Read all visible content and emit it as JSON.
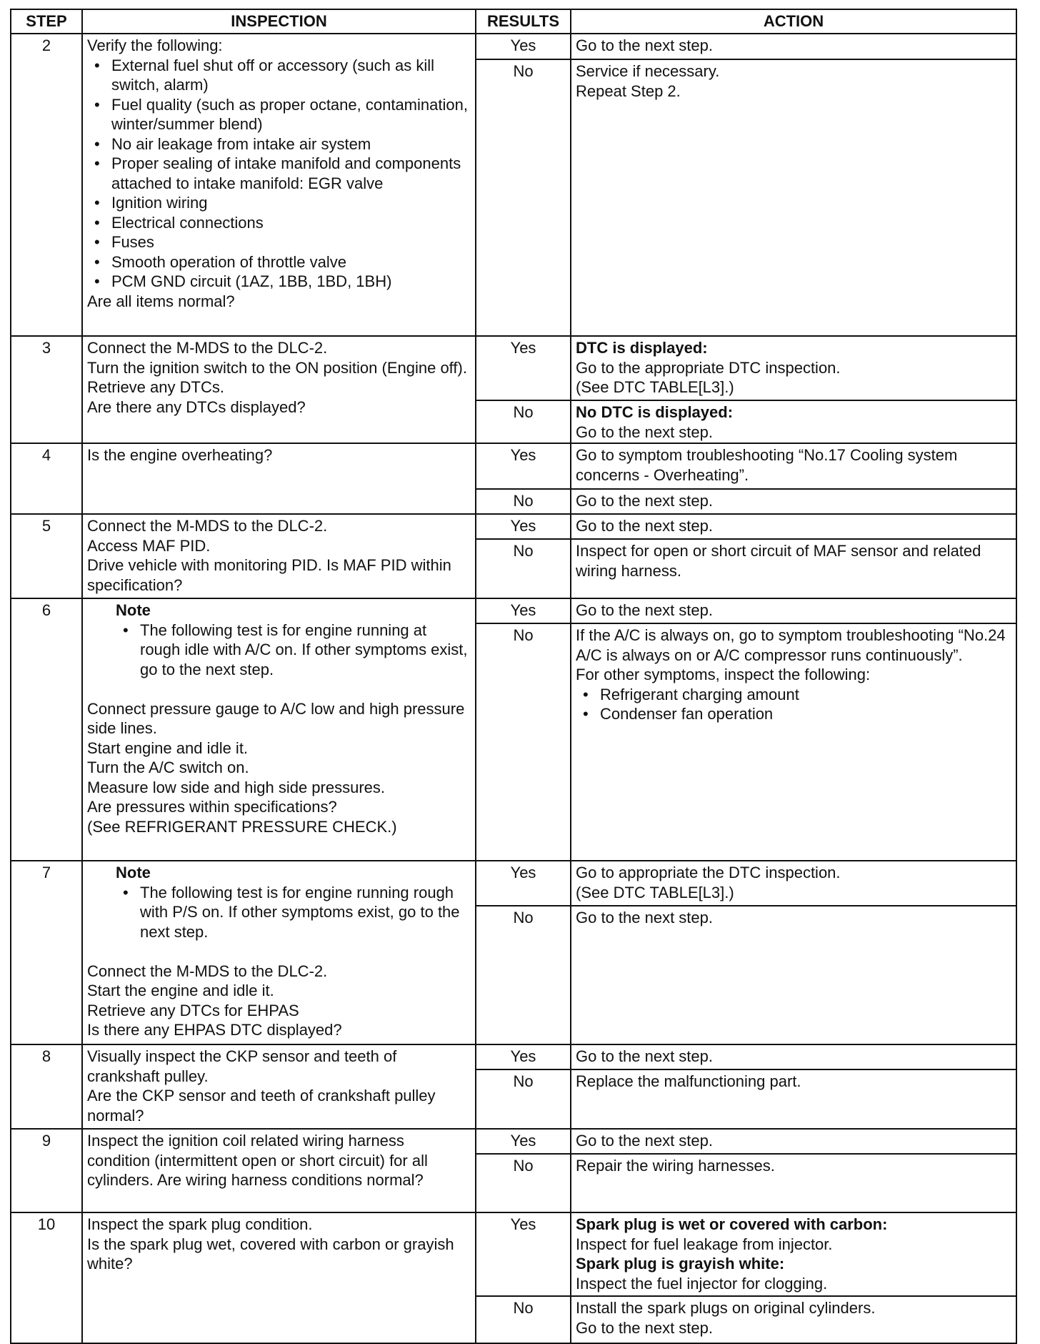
{
  "headers": {
    "step": "STEP",
    "inspection": "INSPECTION",
    "results": "RESULTS",
    "action": "ACTION"
  },
  "rows": [
    {
      "step": "2",
      "inspection": [
        {
          "type": "text",
          "text": "Verify the following:"
        },
        {
          "type": "bullets",
          "items": [
            "External fuel shut off or accessory (such as kill switch, alarm)",
            "Fuel quality (such as proper octane, contamination, winter/summer blend)",
            "No air leakage from intake air system",
            "Proper sealing of intake manifold and components attached to intake manifold: EGR valve",
            "Ignition wiring",
            "Electrical connections",
            "Fuses",
            "Smooth operation of throttle valve",
            "PCM GND circuit (1AZ, 1BB, 1BD, 1BH)"
          ]
        },
        {
          "type": "text",
          "text": "Are all items normal?"
        }
      ],
      "yes": {
        "label": "Yes",
        "action": [
          {
            "type": "text",
            "text": "Go to the next step."
          }
        ]
      },
      "no": {
        "label": "No",
        "action": [
          {
            "type": "text",
            "text": "Service if necessary."
          },
          {
            "type": "text",
            "text": "Repeat Step 2."
          }
        ]
      }
    },
    {
      "step": "3",
      "inspection": [
        {
          "type": "text",
          "text": "Connect the M-MDS to the DLC-2."
        },
        {
          "type": "text",
          "text": "Turn the ignition switch to the ON position (Engine off)."
        },
        {
          "type": "text",
          "text": "Retrieve any DTCs."
        },
        {
          "type": "text",
          "text": "Are there any DTCs displayed?"
        }
      ],
      "yes": {
        "label": "Yes",
        "action": [
          {
            "type": "bold",
            "text": "DTC is displayed:"
          },
          {
            "type": "text",
            "text": "Go to the appropriate DTC inspection."
          },
          {
            "type": "text",
            "text": "(See DTC TABLE[L3].)"
          }
        ]
      },
      "no": {
        "label": "No",
        "action": [
          {
            "type": "bold",
            "text": "No DTC is displayed:"
          },
          {
            "type": "text",
            "text": "Go to the next step."
          }
        ]
      }
    },
    {
      "step": "4",
      "inspection": [
        {
          "type": "text",
          "text": "Is the engine overheating?"
        }
      ],
      "yes": {
        "label": "Yes",
        "action": [
          {
            "type": "text",
            "text": "Go to symptom troubleshooting “No.17 Cooling system concerns - Overheating”."
          }
        ]
      },
      "no": {
        "label": "No",
        "action": [
          {
            "type": "text",
            "text": "Go to the next step."
          }
        ]
      }
    },
    {
      "step": "5",
      "inspection": [
        {
          "type": "text",
          "text": "Connect the M-MDS to the DLC-2."
        },
        {
          "type": "text",
          "text": "Access MAF PID."
        },
        {
          "type": "text",
          "text": "Drive vehicle with monitoring PID. Is MAF PID within specification?"
        }
      ],
      "yes": {
        "label": "Yes",
        "action": [
          {
            "type": "text",
            "text": "Go to the next step."
          }
        ]
      },
      "no": {
        "label": "No",
        "action": [
          {
            "type": "text",
            "text": "Inspect for open or short circuit of MAF sensor and related wiring harness."
          }
        ]
      }
    },
    {
      "step": "6",
      "inspection": [
        {
          "type": "note",
          "title": "Note",
          "items": [
            "The following test is for engine running at rough idle with A/C on. If other symptoms exist, go to the next step."
          ]
        },
        {
          "type": "gap"
        },
        {
          "type": "text",
          "text": "Connect pressure gauge to A/C low and high pressure side lines."
        },
        {
          "type": "text",
          "text": "Start engine and idle it."
        },
        {
          "type": "text",
          "text": "Turn the A/C switch on."
        },
        {
          "type": "text",
          "text": "Measure low side and high side pressures."
        },
        {
          "type": "text",
          "text": "Are pressures within specifications?"
        },
        {
          "type": "text",
          "text": "(See REFRIGERANT PRESSURE CHECK.)"
        }
      ],
      "yes": {
        "label": "Yes",
        "action": [
          {
            "type": "text",
            "text": "Go to the next step."
          }
        ]
      },
      "no": {
        "label": "No",
        "action": [
          {
            "type": "text",
            "text": "If the A/C is always on, go to symptom troubleshooting “No.24 A/C is always on or A/C compressor runs continuously”."
          },
          {
            "type": "text",
            "text": "For other symptoms, inspect the following:"
          },
          {
            "type": "bullets",
            "items": [
              "Refrigerant charging amount",
              "Condenser fan operation"
            ]
          }
        ]
      }
    },
    {
      "step": "7",
      "inspection": [
        {
          "type": "note",
          "title": "Note",
          "items": [
            "The following test is for engine running rough with P/S on. If other symptoms exist, go to the next step."
          ]
        },
        {
          "type": "gap"
        },
        {
          "type": "text",
          "text": "Connect the M-MDS to the DLC-2."
        },
        {
          "type": "text",
          "text": "Start the engine and idle it."
        },
        {
          "type": "text",
          "text": "Retrieve any DTCs for EHPAS"
        },
        {
          "type": "text",
          "text": "Is there any EHPAS DTC displayed?"
        }
      ],
      "yes": {
        "label": "Yes",
        "action": [
          {
            "type": "text",
            "text": "Go to appropriate the DTC inspection."
          },
          {
            "type": "text",
            "text": "(See DTC TABLE[L3].)"
          }
        ]
      },
      "no": {
        "label": "No",
        "action": [
          {
            "type": "text",
            "text": "Go to the next step."
          }
        ]
      }
    },
    {
      "step": "8",
      "inspection": [
        {
          "type": "text",
          "text": "Visually inspect the CKP sensor and teeth of crankshaft pulley."
        },
        {
          "type": "text",
          "text": "Are the CKP sensor and teeth of crankshaft pulley normal?"
        }
      ],
      "yes": {
        "label": "Yes",
        "action": [
          {
            "type": "text",
            "text": "Go to the next step."
          }
        ]
      },
      "no": {
        "label": "No",
        "action": [
          {
            "type": "text",
            "text": "Replace the malfunctioning part."
          }
        ]
      }
    },
    {
      "step": "9",
      "inspection": [
        {
          "type": "text",
          "text": "Inspect the ignition coil related wiring harness condition (intermittent open or short circuit) for all cylinders. Are wiring harness conditions normal?"
        }
      ],
      "yes": {
        "label": "Yes",
        "action": [
          {
            "type": "text",
            "text": "Go to the next step."
          }
        ]
      },
      "no": {
        "label": "No",
        "action": [
          {
            "type": "text",
            "text": "Repair the wiring harnesses."
          }
        ]
      }
    },
    {
      "step": "10",
      "inspection": [
        {
          "type": "text",
          "text": "Inspect the spark plug condition."
        },
        {
          "type": "text",
          "text": "Is the spark plug wet, covered with carbon or grayish white?"
        }
      ],
      "yes": {
        "label": "Yes",
        "action": [
          {
            "type": "bold",
            "text": "Spark plug is wet or covered with carbon:"
          },
          {
            "type": "text",
            "text": "Inspect for fuel leakage from injector."
          },
          {
            "type": "bold",
            "text": "Spark plug is grayish white:"
          },
          {
            "type": "text",
            "text": "Inspect the fuel injector for clogging."
          }
        ]
      },
      "no": {
        "label": "No",
        "action": [
          {
            "type": "text",
            "text": "Install the spark plugs on original cylinders."
          },
          {
            "type": "text",
            "text": "Go to the next step."
          }
        ]
      }
    }
  ]
}
